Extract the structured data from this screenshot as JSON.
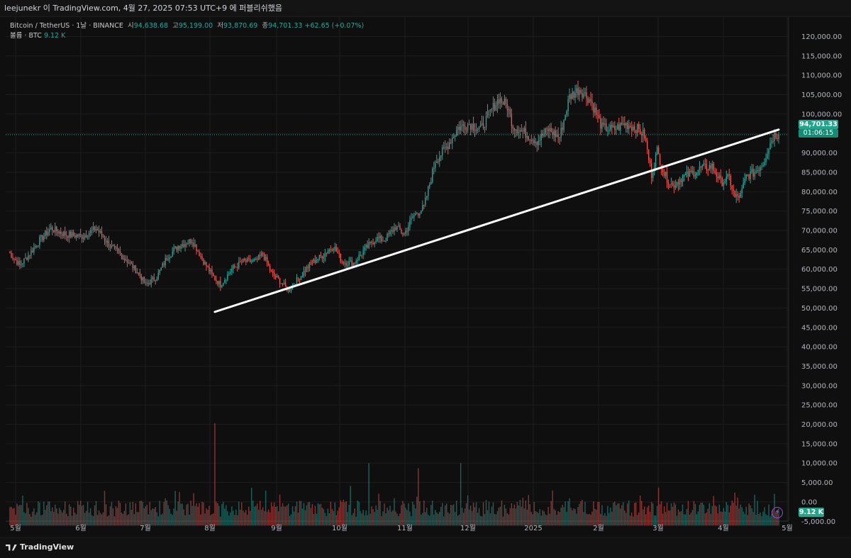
{
  "header": {
    "text": "leejunekr 이 TradingView.com, 4월 27, 2025 07:53 UTC+9 에 퍼블리쉬했음"
  },
  "legend": {
    "symbol": "Bitcoin / TetherUS · 1날 · BINANCE",
    "open_label": "시",
    "open": "94,638.68",
    "high_label": "고",
    "high": "95,199.00",
    "low_label": "저",
    "low": "93,870.69",
    "close_label": "종",
    "close": "94,701.33",
    "change": "+62.65 (+0.07%)",
    "volume_label": "볼륨 · BTC",
    "volume_value": "9.12 K"
  },
  "price_tag": {
    "value": "94,701.33",
    "timer": "01:06:15"
  },
  "volume_tag": "9.12 K",
  "footer": {
    "brand": "TradingView"
  },
  "colors": {
    "up": "#26a69a",
    "down": "#ef5350",
    "background": "#0f0f0f",
    "grid": "#1c1c1c",
    "trendline": "#ffffff",
    "price_line": "#26a69a"
  },
  "chart_data": {
    "type": "candlestick",
    "x_tick_labels": [
      "5월",
      "6월",
      "7월",
      "8월",
      "9월",
      "10월",
      "11월",
      "12월",
      "2025",
      "2월",
      "3월",
      "4월",
      "5월"
    ],
    "y_tick_labels": [
      "120,000.00",
      "115,000.00",
      "110,000.00",
      "105,000.00",
      "100,000.00",
      "95,000.00",
      "90,000.00",
      "85,000.00",
      "80,000.00",
      "75,000.00",
      "70,000.00",
      "65,000.00",
      "60,000.00",
      "55,000.00",
      "50,000.00",
      "45,000.00",
      "40,000.00",
      "35,000.00",
      "30,000.00",
      "25,000.00",
      "20,000.00",
      "15,000.00",
      "10,000.00",
      "5,000.00",
      "0.00",
      "-5,000.00"
    ],
    "ylim": [
      -5000,
      120000
    ],
    "price_path": [
      [
        0,
        64500
      ],
      [
        8,
        61000
      ],
      [
        15,
        64000
      ],
      [
        22,
        67500
      ],
      [
        30,
        70500
      ],
      [
        40,
        69000
      ],
      [
        52,
        68500
      ],
      [
        62,
        70500
      ],
      [
        72,
        66000
      ],
      [
        82,
        63000
      ],
      [
        92,
        59000
      ],
      [
        97,
        56000
      ],
      [
        105,
        58000
      ],
      [
        112,
        63000
      ],
      [
        120,
        66000
      ],
      [
        130,
        67500
      ],
      [
        138,
        62000
      ],
      [
        145,
        58000
      ],
      [
        150,
        56000
      ],
      [
        158,
        60000
      ],
      [
        166,
        62000
      ],
      [
        175,
        62000
      ],
      [
        180,
        64000
      ],
      [
        186,
        59000
      ],
      [
        192,
        57000
      ],
      [
        198,
        54500
      ],
      [
        206,
        58000
      ],
      [
        214,
        61500
      ],
      [
        222,
        63500
      ],
      [
        230,
        66000
      ],
      [
        236,
        62000
      ],
      [
        244,
        61500
      ],
      [
        252,
        65000
      ],
      [
        260,
        68000
      ],
      [
        266,
        67500
      ],
      [
        274,
        71000
      ],
      [
        280,
        69000
      ],
      [
        286,
        73500
      ],
      [
        294,
        76000
      ],
      [
        302,
        88000
      ],
      [
        310,
        91500
      ],
      [
        318,
        96500
      ],
      [
        326,
        97500
      ],
      [
        334,
        96000
      ],
      [
        340,
        100000
      ],
      [
        347,
        104000
      ],
      [
        353,
        102000
      ],
      [
        357,
        97000
      ],
      [
        366,
        95000
      ],
      [
        374,
        93000
      ],
      [
        382,
        96000
      ],
      [
        390,
        94000
      ],
      [
        397,
        104500
      ],
      [
        404,
        106500
      ],
      [
        412,
        103500
      ],
      [
        420,
        96500
      ],
      [
        428,
        96000
      ],
      [
        436,
        97500
      ],
      [
        444,
        96500
      ],
      [
        450,
        94500
      ],
      [
        455,
        84500
      ],
      [
        459,
        90500
      ],
      [
        464,
        84500
      ],
      [
        470,
        81500
      ],
      [
        476,
        83500
      ],
      [
        482,
        84500
      ],
      [
        490,
        86000
      ],
      [
        498,
        86500
      ],
      [
        504,
        82500
      ],
      [
        510,
        83500
      ],
      [
        514,
        78500
      ],
      [
        518,
        79000
      ],
      [
        522,
        84000
      ],
      [
        528,
        85000
      ],
      [
        534,
        87500
      ],
      [
        540,
        93500
      ],
      [
        542,
        94701
      ]
    ],
    "trendline": {
      "start": [
        146,
        49000
      ],
      "end": [
        545,
        96000
      ]
    },
    "last_price": 94701.33,
    "volume_peaks": [
      {
        "x": 146,
        "value": 25300
      },
      {
        "x": 255,
        "value": 15000
      },
      {
        "x": 320,
        "value": 15000
      },
      {
        "x": 290,
        "value": 13700
      },
      {
        "x": 460,
        "value": 8700
      }
    ]
  }
}
